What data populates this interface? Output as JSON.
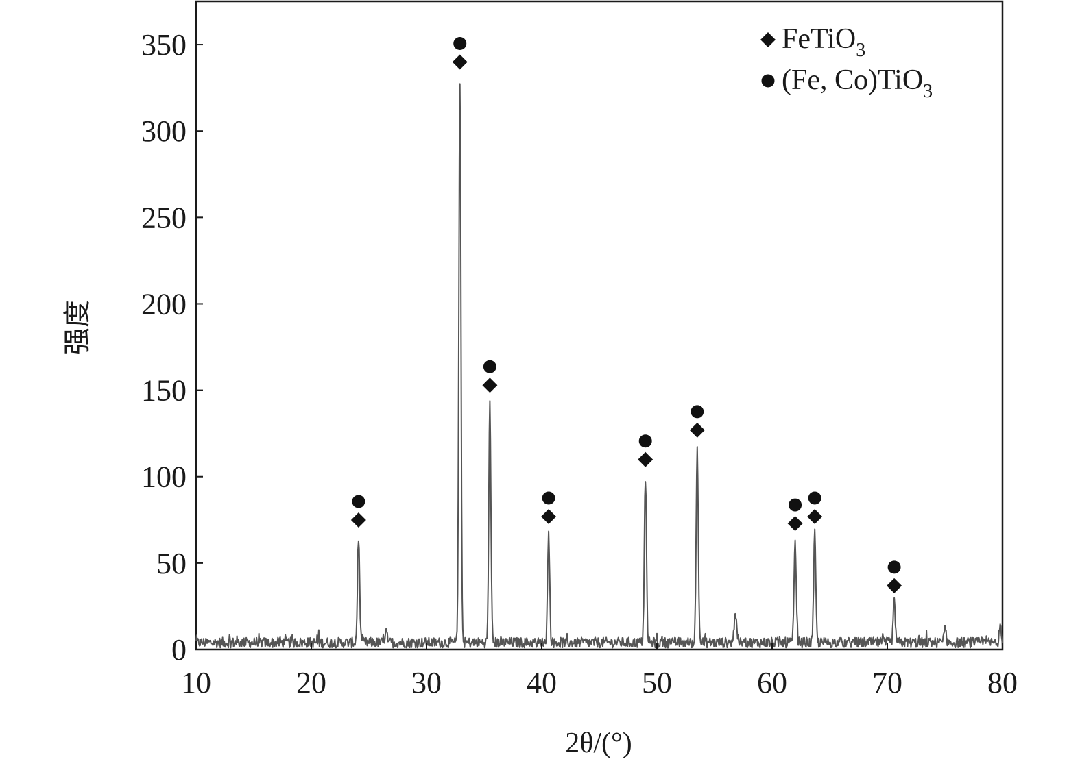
{
  "chart_data": {
    "type": "line",
    "title": "",
    "xlabel": "2θ/(°)",
    "ylabel": "强度",
    "xlim": [
      10,
      80
    ],
    "ylim": [
      0,
      375
    ],
    "xticks": [
      10,
      20,
      30,
      40,
      50,
      60,
      70,
      80
    ],
    "yticks": [
      0,
      50,
      100,
      150,
      200,
      250,
      300,
      350
    ],
    "grid": false,
    "legend_position": "top-right",
    "legend": [
      {
        "marker": "diamond",
        "label": "FeTiO",
        "subscript": "3"
      },
      {
        "marker": "circle",
        "label": "(Fe, Co)TiO",
        "subscript": "3"
      }
    ],
    "series": [
      {
        "color": "#555555",
        "baseline": 4,
        "peaks": [
          {
            "x": 24.1,
            "y": 65
          },
          {
            "x": 26.5,
            "y": 13
          },
          {
            "x": 32.9,
            "y": 330
          },
          {
            "x": 35.5,
            "y": 143
          },
          {
            "x": 40.6,
            "y": 67
          },
          {
            "x": 49.0,
            "y": 100
          },
          {
            "x": 53.5,
            "y": 117
          },
          {
            "x": 56.8,
            "y": 23
          },
          {
            "x": 62.0,
            "y": 63
          },
          {
            "x": 63.7,
            "y": 67
          },
          {
            "x": 70.6,
            "y": 27
          },
          {
            "x": 75.0,
            "y": 14
          },
          {
            "x": 79.8,
            "y": 12
          }
        ]
      }
    ],
    "annotations": [
      {
        "x": 24.1,
        "y": 65,
        "markers": [
          "diamond",
          "circle"
        ]
      },
      {
        "x": 32.9,
        "y": 330,
        "markers": [
          "diamond",
          "circle"
        ]
      },
      {
        "x": 35.5,
        "y": 143,
        "markers": [
          "diamond",
          "circle"
        ]
      },
      {
        "x": 40.6,
        "y": 67,
        "markers": [
          "diamond",
          "circle"
        ]
      },
      {
        "x": 49.0,
        "y": 100,
        "markers": [
          "diamond",
          "circle"
        ]
      },
      {
        "x": 53.5,
        "y": 117,
        "markers": [
          "diamond",
          "circle"
        ]
      },
      {
        "x": 62.0,
        "y": 63,
        "markers": [
          "diamond",
          "circle"
        ]
      },
      {
        "x": 63.7,
        "y": 67,
        "markers": [
          "diamond",
          "circle"
        ]
      },
      {
        "x": 70.6,
        "y": 27,
        "markers": [
          "diamond",
          "circle"
        ]
      }
    ],
    "colors": {
      "axis": "#1a1a1a",
      "line": "#555555",
      "marker": "#111111"
    }
  }
}
